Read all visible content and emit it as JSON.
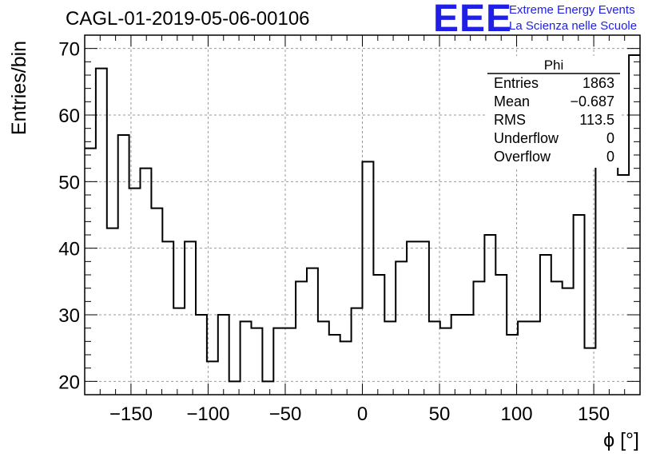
{
  "header": {
    "title": "CAGL-01-2019-05-06-00106",
    "logo_text": "EEE",
    "logo_line1": "Extreme Energy Events",
    "logo_line2": "La Scienza nelle Scuole",
    "logo_color": "#1f1fe6"
  },
  "stats_box": {
    "name": "Phi",
    "rows": [
      {
        "label": "Entries",
        "value": "1863"
      },
      {
        "label": "Mean",
        "value": "−0.687"
      },
      {
        "label": "RMS",
        "value": "113.5"
      },
      {
        "label": "Underflow",
        "value": "0"
      },
      {
        "label": "Overflow",
        "value": "0"
      }
    ]
  },
  "chart_data": {
    "type": "bar",
    "histogram": true,
    "xlabel": "ϕ [°]",
    "ylabel": "Entries/bin",
    "xlim": [
      -180,
      180
    ],
    "ylim": [
      18,
      72
    ],
    "grid": true,
    "bin_width": 7.2,
    "x_ticks": [
      -150,
      -100,
      -50,
      0,
      50,
      100,
      150
    ],
    "x_tick_labels": [
      "−150",
      "−100",
      "−50",
      "0",
      "50",
      "100",
      "150"
    ],
    "y_ticks": [
      20,
      30,
      40,
      50,
      60,
      70
    ],
    "y_tick_labels": [
      "20",
      "30",
      "40",
      "50",
      "60",
      "70"
    ],
    "values": [
      55,
      67,
      43,
      57,
      49,
      52,
      46,
      41,
      31,
      41,
      30,
      23,
      30,
      20,
      29,
      28,
      20,
      28,
      28,
      35,
      37,
      29,
      27,
      26,
      31,
      53,
      36,
      29,
      38,
      41,
      41,
      29,
      28,
      30,
      30,
      35,
      42,
      36,
      27,
      29,
      29,
      39,
      35,
      34,
      45,
      25,
      53,
      56,
      51,
      69
    ]
  }
}
